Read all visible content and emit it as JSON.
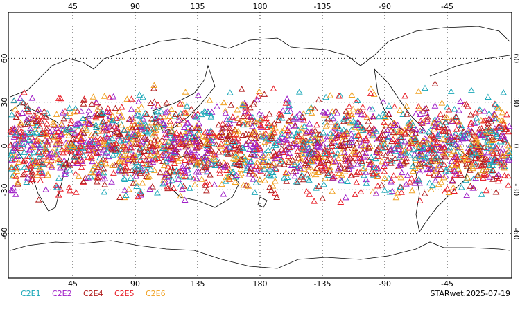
{
  "map": {
    "lon_range": [
      0,
      360
    ],
    "lat_range": [
      -90,
      90
    ],
    "lon_ticks": [
      45,
      90,
      135,
      180,
      {
        "value": 225,
        "label": "-135"
      },
      {
        "value": 270,
        "label": "-90"
      },
      {
        "value": 315,
        "label": "-45"
      }
    ],
    "lat_ticks": [
      60,
      30,
      0,
      -30,
      -60
    ],
    "legend": [
      {
        "name": "C2E1",
        "color": "#1aa7b8"
      },
      {
        "name": "C2E2",
        "color": "#a020c8"
      },
      {
        "name": "C2E4",
        "color": "#b01c1c"
      },
      {
        "name": "C2E5",
        "color": "#e8202a"
      },
      {
        "name": "C2E6",
        "color": "#f0a020"
      }
    ],
    "footer": "STARwet.2025-07-19"
  }
}
